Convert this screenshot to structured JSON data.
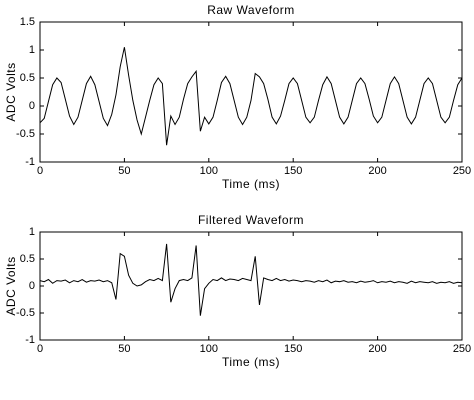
{
  "chart_data": [
    {
      "type": "line",
      "title": "Raw Waveform",
      "x_label": "Time (ms)",
      "y_label": "ADC Volts",
      "x": [
        0,
        2.5,
        5,
        7.5,
        10,
        12.5,
        15,
        17.5,
        20,
        22.5,
        25,
        27.5,
        30,
        32.5,
        35,
        37.5,
        40,
        42.5,
        45,
        47.5,
        50,
        52.5,
        55,
        57.5,
        60,
        62.5,
        65,
        67.5,
        70,
        72.5,
        75,
        77.5,
        80,
        82.5,
        85,
        87.5,
        90,
        92.5,
        95,
        97.5,
        100,
        102.5,
        105,
        107.5,
        110,
        112.5,
        115,
        117.5,
        120,
        122.5,
        125,
        127.5,
        130,
        132.5,
        135,
        137.5,
        140,
        142.5,
        145,
        147.5,
        150,
        152.5,
        155,
        157.5,
        160,
        162.5,
        165,
        167.5,
        170,
        172.5,
        175,
        177.5,
        180,
        182.5,
        185,
        187.5,
        190,
        192.5,
        195,
        197.5,
        200,
        202.5,
        205,
        207.5,
        210,
        212.5,
        215,
        217.5,
        220,
        222.5,
        225,
        227.5,
        230,
        232.5,
        235,
        237.5,
        240,
        242.5,
        245,
        247.5,
        250
      ],
      "series": [
        {
          "color": "#000000",
          "values": [
            -0.3,
            -0.22,
            0.08,
            0.38,
            0.5,
            0.42,
            0.12,
            -0.18,
            -0.33,
            -0.2,
            0.1,
            0.4,
            0.53,
            0.38,
            0.08,
            -0.22,
            -0.35,
            -0.15,
            0.2,
            0.7,
            1.05,
            0.55,
            0.1,
            -0.25,
            -0.5,
            -0.2,
            0.1,
            0.38,
            0.5,
            0.4,
            -0.7,
            -0.18,
            -0.33,
            -0.2,
            0.12,
            0.4,
            0.52,
            0.62,
            -0.45,
            -0.2,
            -0.32,
            -0.2,
            0.1,
            0.42,
            0.53,
            0.4,
            0.1,
            -0.2,
            -0.33,
            -0.2,
            0.1,
            0.58,
            0.52,
            0.4,
            0.12,
            -0.2,
            -0.32,
            -0.18,
            0.1,
            0.4,
            0.5,
            0.4,
            0.1,
            -0.2,
            -0.3,
            -0.2,
            0.1,
            0.38,
            0.52,
            0.4,
            0.1,
            -0.2,
            -0.32,
            -0.2,
            0.1,
            0.4,
            0.5,
            0.4,
            0.12,
            -0.18,
            -0.3,
            -0.2,
            0.1,
            0.4,
            0.52,
            0.4,
            0.1,
            -0.2,
            -0.32,
            -0.2,
            0.1,
            0.4,
            0.5,
            0.4,
            0.1,
            -0.2,
            -0.3,
            -0.2,
            0.1,
            0.38,
            0.5
          ]
        }
      ],
      "xlim": [
        0,
        250
      ],
      "xticks": [
        0,
        50,
        100,
        150,
        200,
        250
      ],
      "ylim": [
        -1,
        1.5
      ],
      "yticks": [
        -1,
        -0.5,
        0,
        0.5,
        1,
        1.5
      ]
    },
    {
      "type": "line",
      "title": "Filtered Waveform",
      "x_label": "Time (ms)",
      "y_label": "ADC Volts",
      "x": [
        0,
        2.5,
        5,
        7.5,
        10,
        12.5,
        15,
        17.5,
        20,
        22.5,
        25,
        27.5,
        30,
        32.5,
        35,
        37.5,
        40,
        42.5,
        45,
        47.5,
        50,
        52.5,
        55,
        57.5,
        60,
        62.5,
        65,
        67.5,
        70,
        72.5,
        75,
        77.5,
        80,
        82.5,
        85,
        87.5,
        90,
        92.5,
        95,
        97.5,
        100,
        102.5,
        105,
        107.5,
        110,
        112.5,
        115,
        117.5,
        120,
        122.5,
        125,
        127.5,
        130,
        132.5,
        135,
        137.5,
        140,
        142.5,
        145,
        147.5,
        150,
        152.5,
        155,
        157.5,
        160,
        162.5,
        165,
        167.5,
        170,
        172.5,
        175,
        177.5,
        180,
        182.5,
        185,
        187.5,
        190,
        192.5,
        195,
        197.5,
        200,
        202.5,
        205,
        207.5,
        210,
        212.5,
        215,
        217.5,
        220,
        222.5,
        225,
        227.5,
        230,
        232.5,
        235,
        237.5,
        240,
        242.5,
        245,
        247.5,
        250
      ],
      "series": [
        {
          "color": "#000000",
          "values": [
            0.1,
            0.08,
            0.12,
            0.05,
            0.1,
            0.09,
            0.11,
            0.06,
            0.1,
            0.08,
            0.12,
            0.07,
            0.1,
            0.09,
            0.11,
            0.08,
            0.1,
            0.06,
            -0.25,
            0.6,
            0.55,
            0.2,
            0.05,
            0.0,
            0.02,
            0.08,
            0.12,
            0.1,
            0.14,
            0.1,
            0.78,
            -0.3,
            -0.05,
            0.1,
            0.12,
            0.1,
            0.15,
            0.75,
            -0.55,
            -0.05,
            0.05,
            0.12,
            0.1,
            0.15,
            0.1,
            0.13,
            0.12,
            0.1,
            0.14,
            0.12,
            0.1,
            0.55,
            -0.35,
            0.15,
            0.12,
            0.1,
            0.14,
            0.1,
            0.12,
            0.09,
            0.11,
            0.1,
            0.08,
            0.1,
            0.09,
            0.07,
            0.1,
            0.08,
            0.11,
            0.06,
            0.09,
            0.08,
            0.1,
            0.07,
            0.08,
            0.06,
            0.09,
            0.07,
            0.08,
            0.1,
            0.06,
            0.08,
            0.07,
            0.09,
            0.06,
            0.08,
            0.07,
            0.05,
            0.09,
            0.06,
            0.08,
            0.07,
            0.06,
            0.08,
            0.05,
            0.07,
            0.06,
            0.08,
            0.05,
            0.07,
            0.06
          ]
        }
      ],
      "xlim": [
        0,
        250
      ],
      "xticks": [
        0,
        50,
        100,
        150,
        200,
        250
      ],
      "ylim": [
        -1,
        1
      ],
      "yticks": [
        -1,
        -0.5,
        0,
        0.5,
        1
      ]
    }
  ]
}
